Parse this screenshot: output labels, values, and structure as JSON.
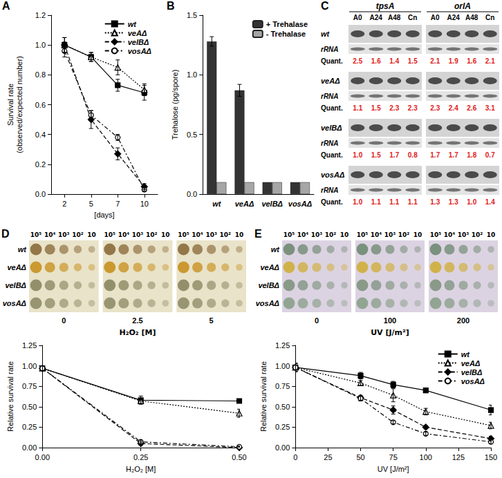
{
  "chart_data": [
    {
      "panel": "A",
      "type": "line",
      "xlabel": "[days]",
      "ylabel": "Survival rate\n(observed/expected number)",
      "categories": [
        "2",
        "5",
        "7",
        "10"
      ],
      "ylim": [
        0,
        1.2
      ],
      "yticks": [
        {
          "value": 0,
          "label": "0.0"
        },
        0.2,
        0.4,
        0.6,
        0.8,
        {
          "value": 1,
          "label": "1.0"
        },
        1.2
      ],
      "grid": false,
      "legend": "upper right",
      "series": [
        {
          "name": "wt",
          "color": "#000000",
          "marker": "square",
          "line_style": "solid",
          "values": [
            1.0,
            0.92,
            0.73,
            0.68
          ],
          "errors": [
            0.02,
            0.03,
            0.04,
            0.05
          ]
        },
        {
          "name": "veAΔ",
          "color": "#000000",
          "marker": "triangle-open",
          "line_style": "dotted",
          "values": [
            1.0,
            0.92,
            0.85,
            0.7
          ],
          "errors": [
            0.05,
            0.03,
            0.05,
            0.04
          ]
        },
        {
          "name": "velBΔ",
          "color": "#000000",
          "marker": "diamond",
          "line_style": "dashed",
          "values": [
            1.0,
            0.5,
            0.27,
            0.05
          ],
          "errors": [
            0.05,
            0.06,
            0.04,
            0.02
          ]
        },
        {
          "name": "vosAΔ",
          "color": "#000000",
          "marker": "circle-open",
          "line_style": "dashdot",
          "values": [
            0.96,
            0.53,
            0.38,
            0.03
          ],
          "errors": [
            0.04,
            0.03,
            0.02,
            0.01
          ]
        }
      ]
    },
    {
      "panel": "B",
      "type": "bar",
      "ylabel": "Trehalose (pg/spore)",
      "categories": [
        "wt",
        "veAΔ",
        "velBΔ",
        "vosAΔ"
      ],
      "ylim": [
        0,
        1.5
      ],
      "yticks": [
        {
          "value": 0,
          "label": "0.0"
        },
        0.5,
        {
          "value": 1,
          "label": "1.0"
        },
        1.5
      ],
      "grid": false,
      "legend": "upper right",
      "series": [
        {
          "name": "+ Trehalase",
          "color": "#333333",
          "values": [
            1.28,
            0.87,
            0.1,
            0.1
          ],
          "errors": [
            0.04,
            0.05,
            0,
            0
          ]
        },
        {
          "name": "- Trehalase",
          "color": "#a6a6a6",
          "values": [
            0.1,
            0.1,
            0.1,
            0.1
          ]
        }
      ]
    },
    {
      "type": "line",
      "xlabel": "H₂O₂ [M]",
      "ylabel": "Relative survival rate",
      "x": [
        0,
        0.25,
        0.5
      ],
      "xlim": [
        0,
        0.5
      ],
      "xticks": [
        {
          "value": 0,
          "label": "0.00"
        },
        0.25,
        {
          "value": 0.5,
          "label": "0.50"
        }
      ],
      "ylim": [
        0,
        1.25
      ],
      "yticks": [
        {
          "value": 0,
          "label": "0.00"
        },
        0.25,
        {
          "value": 0.5,
          "label": "0.50"
        },
        0.75,
        {
          "value": 1,
          "label": "1.00"
        },
        1.25
      ],
      "grid": false,
      "series": [
        {
          "name": "wt",
          "color": "#000000",
          "marker": "square",
          "line_style": "solid",
          "values": [
            0.97,
            0.58,
            0.57
          ],
          "errors": [
            0.03,
            0.05,
            0.02
          ]
        },
        {
          "name": "veAΔ",
          "color": "#000000",
          "marker": "triangle-open",
          "line_style": "dotted",
          "values": [
            0.97,
            0.57,
            0.42
          ],
          "errors": [
            0.03,
            0.03,
            0.05
          ]
        },
        {
          "name": "velBΔ",
          "color": "#000000",
          "marker": "diamond",
          "line_style": "dashed",
          "values": [
            0.97,
            0.05,
            0.0
          ],
          "errors": [
            0.03,
            0.02,
            0.01
          ]
        },
        {
          "name": "vosAΔ",
          "color": "#000000",
          "marker": "circle-open",
          "line_style": "dashdot",
          "values": [
            0.97,
            0.07,
            0.01
          ],
          "errors": [
            0.03,
            0.02,
            0.01
          ]
        }
      ]
    },
    {
      "type": "line",
      "xlabel": "UV [J/m²]",
      "ylabel": "Relative survival rate",
      "x": [
        0,
        50,
        75,
        100,
        150
      ],
      "xlim": [
        0,
        150
      ],
      "xticks": [
        0,
        25,
        50,
        75,
        100,
        125,
        150
      ],
      "ylim": [
        0,
        1.25
      ],
      "yticks": [
        {
          "value": 0,
          "label": "0.00"
        },
        0.25,
        {
          "value": 0.5,
          "label": "0.50"
        },
        0.75,
        {
          "value": 1,
          "label": "1.00"
        },
        1.25
      ],
      "grid": false,
      "legend": "upper right",
      "series": [
        {
          "name": "wt",
          "color": "#000000",
          "marker": "square",
          "line_style": "solid",
          "values": [
            0.98,
            0.88,
            0.77,
            0.7,
            0.46
          ],
          "errors": [
            0.05,
            0.04,
            0.04,
            0.03,
            0.06
          ]
        },
        {
          "name": "veAΔ",
          "color": "#000000",
          "marker": "triangle-open",
          "line_style": "dotted",
          "values": [
            0.98,
            0.79,
            0.64,
            0.44,
            0.27
          ],
          "errors": [
            0.05,
            0.03,
            0.08,
            0.04,
            0.04
          ]
        },
        {
          "name": "velBΔ",
          "color": "#000000",
          "marker": "diamond",
          "line_style": "dashed",
          "values": [
            0.98,
            0.61,
            0.46,
            0.25,
            0.11
          ],
          "errors": [
            0.05,
            0.03,
            0.05,
            0.02,
            0.03
          ]
        },
        {
          "name": "vosAΔ",
          "color": "#000000",
          "marker": "circle-open",
          "line_style": "dashdot",
          "values": [
            0.98,
            0.6,
            0.31,
            0.17,
            0.07
          ],
          "errors": [
            0.05,
            0.03,
            0.02,
            0.02,
            0.02
          ]
        }
      ]
    }
  ],
  "blot": {
    "panel": "C",
    "genes": [
      "tpsA",
      "orlA"
    ],
    "lanes": [
      "A0",
      "A24",
      "A48",
      "Cn"
    ],
    "loading_label": "rRNA",
    "quant_label": "Quant.",
    "strains": [
      {
        "name": "wt",
        "quant": [
          [
            "2.5",
            "1.6",
            "1.4",
            "1.5"
          ],
          [
            "2.1",
            "1.9",
            "1.6",
            "2.1"
          ]
        ]
      },
      {
        "name": "veAΔ",
        "quant": [
          [
            "1.1",
            "1.5",
            "2.3",
            "2.3"
          ],
          [
            "2.3",
            "2.4",
            "2.6",
            "3.1"
          ]
        ]
      },
      {
        "name": "velBΔ",
        "quant": [
          [
            "1.0",
            "1.5",
            "1.7",
            "0.8"
          ],
          [
            "1.7",
            "1.7",
            "1.8",
            "0.7"
          ]
        ]
      },
      {
        "name": "vosAΔ",
        "quant": [
          [
            "1.0",
            "1.1",
            "1.1",
            "1.1"
          ],
          [
            "1.3",
            "1.3",
            "1.0",
            "1.4"
          ]
        ]
      }
    ]
  },
  "spots": [
    {
      "panel": "D",
      "dilutions": [
        "10⁵",
        "10⁴",
        "10³",
        "10²",
        "10"
      ],
      "strains": [
        "wt",
        "veAΔ",
        "velBΔ",
        "vosAΔ"
      ],
      "doses": [
        "0",
        "2.5",
        "5"
      ],
      "dose_label": "H₂O₂ [M]"
    },
    {
      "panel": "E",
      "dilutions": [
        "10⁵",
        "10⁴",
        "10³",
        "10²",
        "10"
      ],
      "strains": [
        "wt",
        "veAΔ",
        "velBΔ",
        "vosAΔ"
      ],
      "doses": [
        "0",
        "100",
        "200"
      ],
      "dose_label": "UV [J/m²]"
    }
  ]
}
